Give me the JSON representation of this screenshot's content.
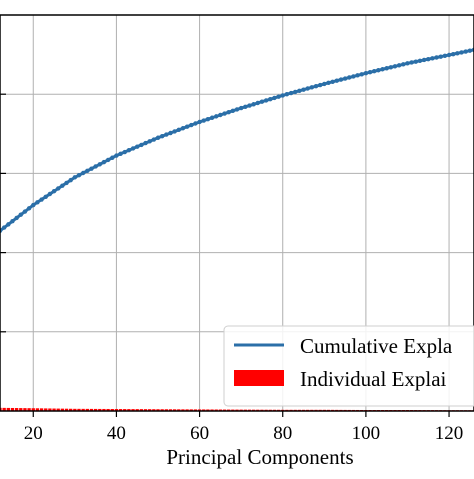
{
  "chart_data": {
    "type": "line",
    "xlabel": "Principal Components",
    "ylabel": "",
    "title": "",
    "xlim": [
      12,
      126
    ],
    "ylim": [
      0.0,
      1.0
    ],
    "xticks": [
      20,
      40,
      60,
      80,
      100,
      120
    ],
    "xtick_labels": [
      "20",
      "40",
      "60",
      "80",
      "100",
      "120"
    ],
    "grid": true,
    "legend_position": "bottom-right",
    "series": [
      {
        "name": "Cumulative Expla",
        "kind": "line-with-markers",
        "color": "#2b6fa8",
        "x": [
          12,
          20,
          30,
          40,
          50,
          60,
          70,
          80,
          90,
          100,
          110,
          120,
          126
        ],
        "y": [
          0.455,
          0.52,
          0.59,
          0.645,
          0.69,
          0.73,
          0.765,
          0.797,
          0.826,
          0.853,
          0.878,
          0.899,
          0.912
        ]
      },
      {
        "name": "Individual Explai",
        "kind": "bar",
        "color": "#ff0000",
        "x": [
          12,
          20,
          30,
          40,
          50,
          60,
          70,
          80,
          90,
          100,
          110,
          120,
          126
        ],
        "y": [
          0.008,
          0.007,
          0.0055,
          0.005,
          0.0045,
          0.004,
          0.0035,
          0.003,
          0.003,
          0.0025,
          0.0025,
          0.002,
          0.002
        ]
      }
    ]
  }
}
